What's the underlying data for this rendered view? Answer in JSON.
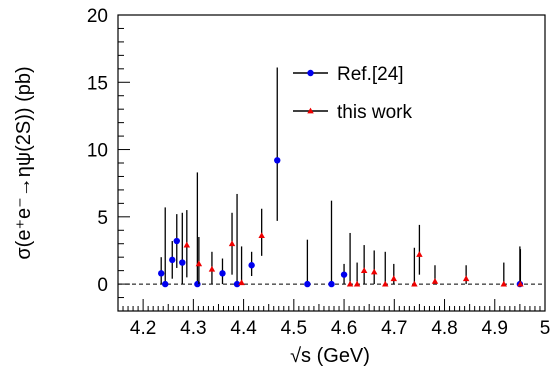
{
  "chart_data": {
    "type": "scatter",
    "title": "",
    "xlabel": "√s (GeV)",
    "ylabel": "σ(e⁺e⁻→ηψ(2S)) (pb)",
    "xlim": [
      4.15,
      5.0
    ],
    "ylim": [
      -2,
      20
    ],
    "x_ticks": [
      "4.2",
      "4.3",
      "4.4",
      "4.5",
      "4.6",
      "4.7",
      "4.8",
      "4.9",
      "5"
    ],
    "y_ticks": [
      "0",
      "5",
      "10",
      "15",
      "20"
    ],
    "grid": false,
    "legend_position": "top-center",
    "reference_line": {
      "y": 0,
      "style": "dashed"
    },
    "series": [
      {
        "name": "Ref.[24]",
        "color": "#0000ee",
        "marker": "circle",
        "points": [
          {
            "x": 4.236,
            "y": 0.8,
            "lo": 0.0,
            "hi": 2.0
          },
          {
            "x": 4.244,
            "y": 0.0,
            "lo": 0.0,
            "hi": 5.7
          },
          {
            "x": 4.258,
            "y": 1.8,
            "lo": 0.4,
            "hi": 3.2
          },
          {
            "x": 4.267,
            "y": 3.2,
            "lo": 1.2,
            "hi": 5.2
          },
          {
            "x": 4.278,
            "y": 1.6,
            "lo": 0.0,
            "hi": 5.3
          },
          {
            "x": 4.308,
            "y": 0.0,
            "lo": 0.0,
            "hi": 8.3
          },
          {
            "x": 4.358,
            "y": 0.8,
            "lo": 0.0,
            "hi": 1.9
          },
          {
            "x": 4.387,
            "y": 0.0,
            "lo": 0.0,
            "hi": 6.7
          },
          {
            "x": 4.416,
            "y": 1.4,
            "lo": 0.6,
            "hi": 2.4
          },
          {
            "x": 4.467,
            "y": 9.2,
            "lo": 4.7,
            "hi": 16.1
          },
          {
            "x": 4.527,
            "y": 0.0,
            "lo": 0.0,
            "hi": 3.3
          },
          {
            "x": 4.575,
            "y": 0.0,
            "lo": 0.0,
            "hi": 6.2
          },
          {
            "x": 4.6,
            "y": 0.7,
            "lo": 0.0,
            "hi": 1.5
          },
          {
            "x": 4.95,
            "y": 0.0,
            "lo": 0.0,
            "hi": 2.8
          }
        ]
      },
      {
        "name": "this work",
        "color": "#ee0000",
        "marker": "triangle",
        "points": [
          {
            "x": 4.287,
            "y": 2.9,
            "lo": 0.5,
            "hi": 5.5
          },
          {
            "x": 4.311,
            "y": 1.5,
            "lo": 0.0,
            "hi": 3.5
          },
          {
            "x": 4.337,
            "y": 1.1,
            "lo": 0.0,
            "hi": 2.4
          },
          {
            "x": 4.377,
            "y": 3.0,
            "lo": 0.7,
            "hi": 5.3
          },
          {
            "x": 4.396,
            "y": 0.1,
            "lo": 0.0,
            "hi": 2.8
          },
          {
            "x": 4.436,
            "y": 3.6,
            "lo": 2.1,
            "hi": 5.6
          },
          {
            "x": 4.612,
            "y": 0.0,
            "lo": 0.0,
            "hi": 3.8
          },
          {
            "x": 4.626,
            "y": 0.0,
            "lo": 0.0,
            "hi": 1.6
          },
          {
            "x": 4.64,
            "y": 1.0,
            "lo": 0.0,
            "hi": 2.9
          },
          {
            "x": 4.66,
            "y": 0.9,
            "lo": 0.0,
            "hi": 2.5
          },
          {
            "x": 4.682,
            "y": 0.0,
            "lo": 0.0,
            "hi": 2.4
          },
          {
            "x": 4.699,
            "y": 0.4,
            "lo": 0.0,
            "hi": 1.5
          },
          {
            "x": 4.74,
            "y": 0.0,
            "lo": 0.0,
            "hi": 2.7
          },
          {
            "x": 4.75,
            "y": 2.2,
            "lo": 0.7,
            "hi": 4.4
          },
          {
            "x": 4.781,
            "y": 0.2,
            "lo": 0.0,
            "hi": 1.4
          },
          {
            "x": 4.843,
            "y": 0.4,
            "lo": 0.0,
            "hi": 1.4
          },
          {
            "x": 4.918,
            "y": 0.0,
            "lo": 0.0,
            "hi": 1.6
          },
          {
            "x": 4.951,
            "y": 0.0,
            "lo": 0.0,
            "hi": 2.6
          }
        ]
      }
    ]
  }
}
